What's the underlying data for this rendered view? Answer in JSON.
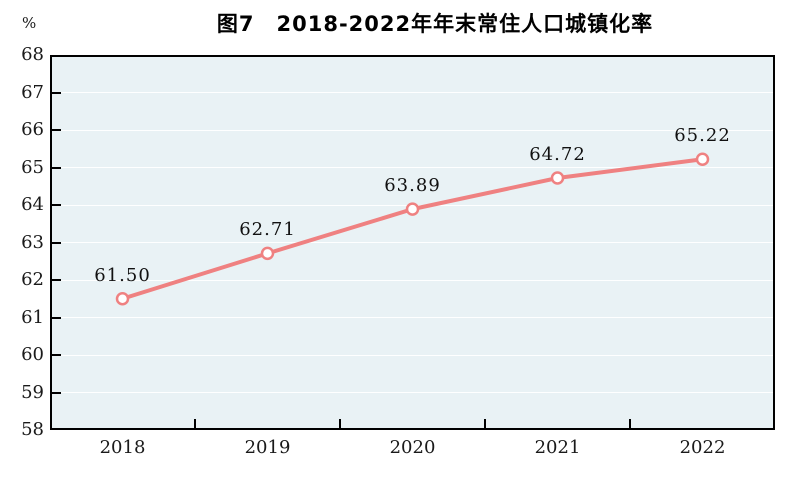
{
  "chart_data": {
    "type": "line",
    "title": "图7　2018-2022年年末常住人口城镇化率",
    "unit": "%",
    "categories": [
      "2018",
      "2019",
      "2020",
      "2021",
      "2022"
    ],
    "values": [
      61.5,
      62.71,
      63.89,
      64.72,
      65.22
    ],
    "point_labels": [
      "61.50",
      "62.71",
      "63.89",
      "64.72",
      "65.22"
    ],
    "ylim": [
      58,
      68
    ],
    "y_tick_step": 1,
    "y_tick_labels": [
      "58",
      "59",
      "60",
      "61",
      "62",
      "63",
      "64",
      "65",
      "66",
      "67",
      "68"
    ],
    "grid": "horizontal",
    "legend_position": "none",
    "colors": {
      "line": "#ef8181",
      "marker_fill": "#ffffff",
      "marker_stroke": "#ef8181",
      "plot_background": "#e9f2f5",
      "axis": "#000000",
      "label_text": "#111111"
    }
  }
}
